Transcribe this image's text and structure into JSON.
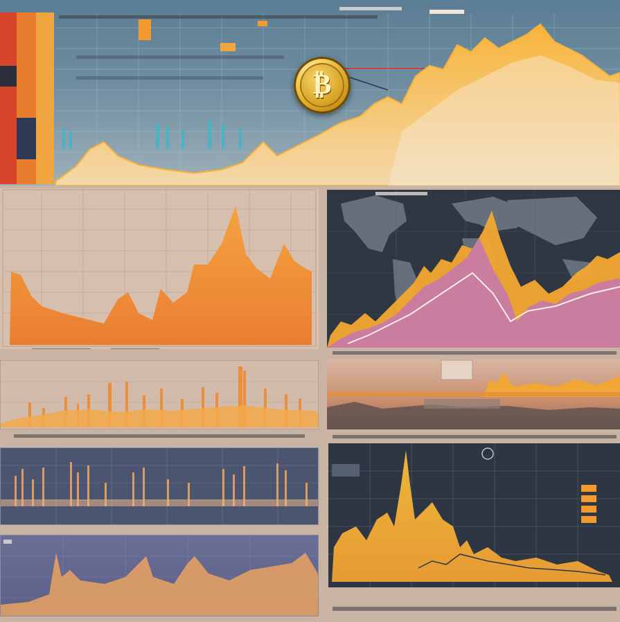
{
  "image": {
    "kind": "illustrative financial dashboard collage",
    "primary_colors": {
      "background": "#c9b3a2",
      "dark_panel": "#2b3440",
      "navy_panel": "#34405a",
      "orange": "#f29a30",
      "amber": "#f4b73c",
      "magenta": "#c77aa8",
      "teal": "#3fb6c8",
      "red": "#d24a2c"
    },
    "icons": [
      "bitcoin-coin-icon",
      "world-map-graphic"
    ]
  }
}
